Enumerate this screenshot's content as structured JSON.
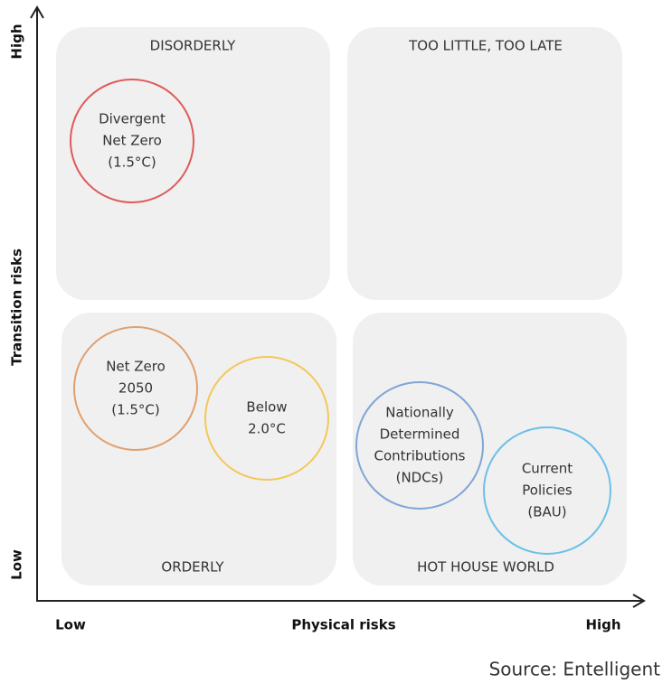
{
  "axes": {
    "y_label": "Transition risks",
    "y_high": "High",
    "y_low": "Low",
    "x_label": "Physical risks",
    "x_low": "Low",
    "x_high": "High"
  },
  "quadrants": [
    {
      "title": "DISORDERLY"
    },
    {
      "title": "TOO LITTLE, TOO LATE"
    },
    {
      "title": "ORDERLY"
    },
    {
      "title": "HOT HOUSE WORLD"
    }
  ],
  "scenarios": [
    {
      "lines": [
        "Divergent",
        "Net Zero",
        "(1.5°C)"
      ]
    },
    {
      "lines": [
        "Net Zero",
        "2050",
        "(1.5°C)"
      ]
    },
    {
      "lines": [
        "Below",
        "2.0°C"
      ]
    },
    {
      "lines": [
        "Nationally",
        "Determined",
        "Contributions",
        "(NDCs)"
      ]
    },
    {
      "lines": [
        "Current",
        "Policies",
        "(BAU)"
      ]
    }
  ],
  "source": "Source: Entelligent"
}
